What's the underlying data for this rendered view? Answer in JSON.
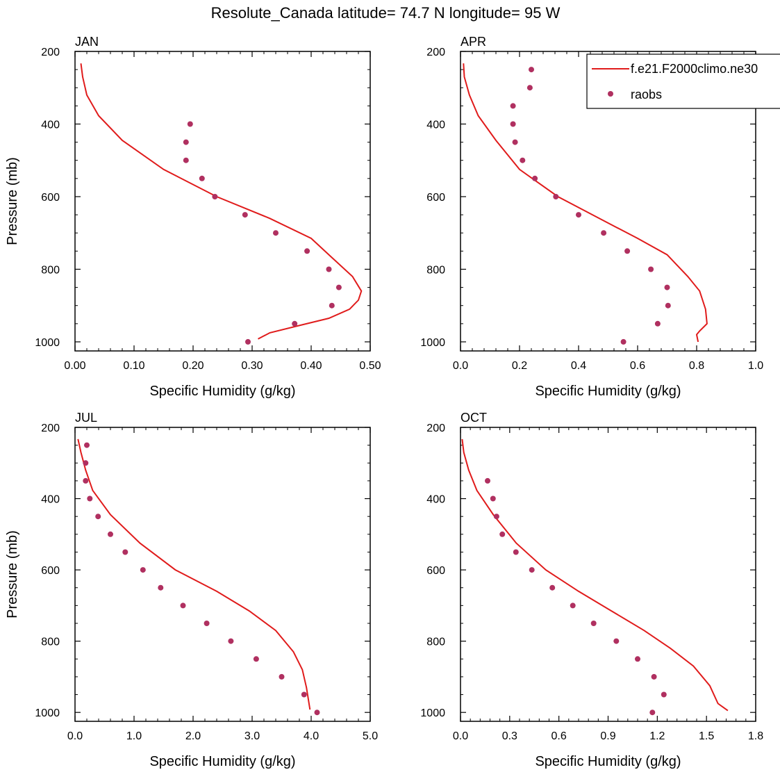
{
  "title": "Resolute_Canada  latitude= 74.7 N longitude= 95 W",
  "legend": {
    "model_label": "f.e21.F2000climo.ne30",
    "obs_label": "raobs",
    "model_color": "#e01b1b",
    "obs_color": "#b03060"
  },
  "chart_data": [
    {
      "type": "line",
      "title": "JAN",
      "xlabel": "Specific Humidity (g/kg)",
      "ylabel": "Pressure (mb)",
      "xlim": [
        0,
        0.5
      ],
      "ylim": [
        200,
        1025
      ],
      "xticks": [
        "0.00",
        "0.10",
        "0.20",
        "0.30",
        "0.40",
        "0.50"
      ],
      "yticks": [
        "200",
        "400",
        "600",
        "800",
        "1000"
      ],
      "model": {
        "q": [
          0.01,
          0.013,
          0.02,
          0.04,
          0.08,
          0.15,
          0.24,
          0.33,
          0.4,
          0.43,
          0.47,
          0.485,
          0.48,
          0.465,
          0.43,
          0.38,
          0.33,
          0.31
        ],
        "p": [
          233,
          270,
          320,
          377,
          445,
          525,
          600,
          660,
          715,
          760,
          820,
          860,
          885,
          910,
          935,
          955,
          975,
          992
        ]
      },
      "obs": {
        "q": [
          0.195,
          0.188,
          0.188,
          0.215,
          0.237,
          0.288,
          0.34,
          0.393,
          0.43,
          0.447,
          0.435,
          0.372,
          0.293
        ],
        "p": [
          400,
          450,
          500,
          550,
          600,
          650,
          700,
          750,
          800,
          850,
          900,
          950,
          1000
        ]
      }
    },
    {
      "type": "line",
      "title": "APR",
      "xlabel": "Specific Humidity (g/kg)",
      "ylabel": "",
      "xlim": [
        0,
        1.0
      ],
      "ylim": [
        200,
        1025
      ],
      "xticks": [
        "0.0",
        "0.2",
        "0.4",
        "0.6",
        "0.8",
        "1.0"
      ],
      "yticks": [
        "200",
        "400",
        "600",
        "800",
        "1000"
      ],
      "model": {
        "q": [
          0.01,
          0.013,
          0.03,
          0.06,
          0.12,
          0.2,
          0.33,
          0.47,
          0.6,
          0.7,
          0.77,
          0.81,
          0.83,
          0.835,
          0.81,
          0.8,
          0.805
        ],
        "p": [
          233,
          270,
          320,
          377,
          445,
          525,
          600,
          660,
          715,
          760,
          820,
          860,
          910,
          950,
          970,
          980,
          1000
        ]
      },
      "obs": {
        "q": [
          0.24,
          0.235,
          0.178,
          0.178,
          0.185,
          0.21,
          0.252,
          0.323,
          0.4,
          0.485,
          0.565,
          0.645,
          0.7,
          0.703,
          0.668,
          0.552
        ],
        "p": [
          250,
          300,
          350,
          400,
          450,
          500,
          550,
          600,
          650,
          700,
          750,
          800,
          850,
          900,
          950,
          1000
        ]
      }
    },
    {
      "type": "line",
      "title": "JUL",
      "xlabel": "Specific Humidity (g/kg)",
      "ylabel": "Pressure (mb)",
      "xlim": [
        0,
        5.0
      ],
      "ylim": [
        200,
        1025
      ],
      "xticks": [
        "0.0",
        "1.0",
        "2.0",
        "3.0",
        "4.0",
        "5.0"
      ],
      "yticks": [
        "200",
        "400",
        "600",
        "800",
        "1000"
      ],
      "model": {
        "q": [
          0.05,
          0.1,
          0.18,
          0.3,
          0.6,
          1.1,
          1.7,
          2.4,
          2.95,
          3.4,
          3.7,
          3.85,
          3.92,
          3.98
        ],
        "p": [
          233,
          270,
          320,
          377,
          445,
          525,
          600,
          660,
          715,
          770,
          830,
          880,
          930,
          992
        ]
      },
      "obs": {
        "q": [
          0.2,
          0.18,
          0.18,
          0.25,
          0.39,
          0.6,
          0.85,
          1.15,
          1.45,
          1.83,
          2.23,
          2.64,
          3.07,
          3.5,
          3.88,
          4.1
        ],
        "p": [
          250,
          300,
          350,
          400,
          450,
          500,
          550,
          600,
          650,
          700,
          750,
          800,
          850,
          900,
          950,
          1000
        ]
      }
    },
    {
      "type": "line",
      "title": "OCT",
      "xlabel": "Specific Humidity (g/kg)",
      "ylabel": "",
      "xlim": [
        0,
        1.8
      ],
      "ylim": [
        200,
        1025
      ],
      "xticks": [
        "0.0",
        "0.3",
        "0.6",
        "0.9",
        "1.2",
        "1.5",
        "1.8"
      ],
      "yticks": [
        "200",
        "400",
        "600",
        "800",
        "1000"
      ],
      "model": {
        "q": [
          0.01,
          0.02,
          0.05,
          0.1,
          0.2,
          0.34,
          0.52,
          0.72,
          0.92,
          1.12,
          1.28,
          1.42,
          1.52,
          1.57,
          1.63
        ],
        "p": [
          233,
          270,
          320,
          377,
          445,
          525,
          600,
          660,
          715,
          770,
          820,
          870,
          925,
          975,
          995
        ]
      },
      "obs": {
        "q": [
          0.165,
          0.198,
          0.22,
          0.255,
          0.338,
          0.435,
          0.56,
          0.685,
          0.812,
          0.95,
          1.08,
          1.18,
          1.24,
          1.17
        ],
        "p": [
          350,
          400,
          450,
          500,
          550,
          600,
          650,
          700,
          750,
          800,
          850,
          900,
          950,
          1000
        ]
      }
    }
  ]
}
